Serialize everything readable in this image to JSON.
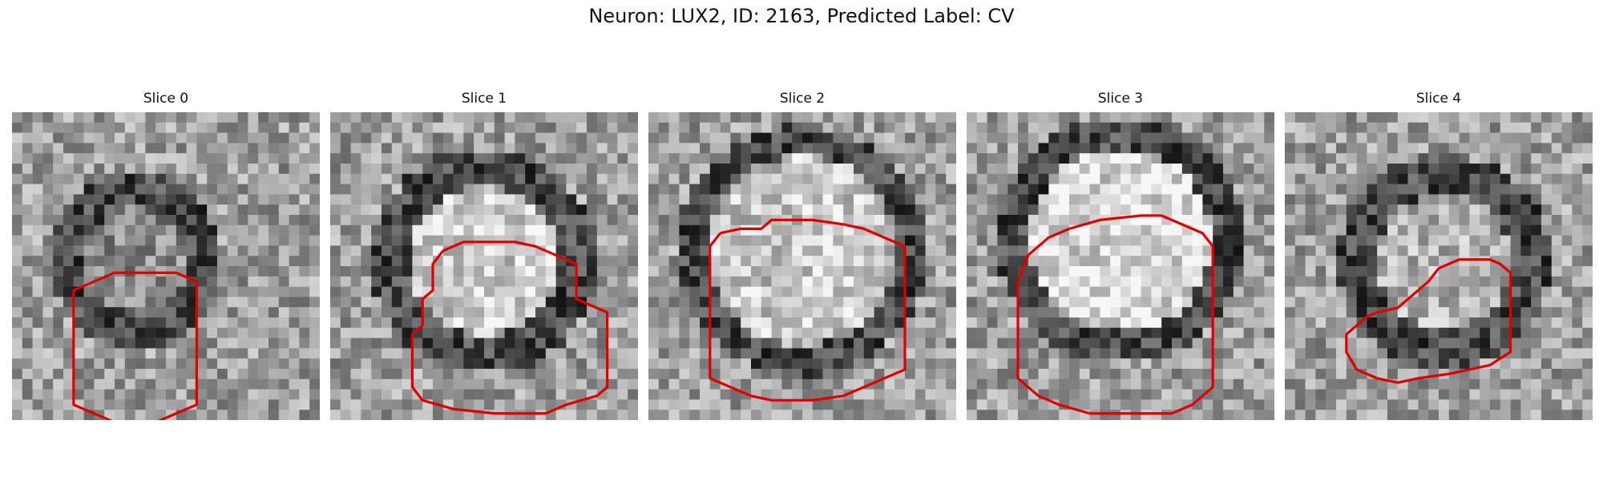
{
  "figure": {
    "title": "Neuron: LUX2, ID: 2163, Predicted Label: CV"
  },
  "slices": [
    {
      "label": "Slice 0",
      "contour": [
        [
          8,
          28
        ],
        [
          10,
          26
        ],
        [
          12,
          26
        ],
        [
          14,
          26
        ],
        [
          16,
          26
        ],
        [
          18,
          28
        ],
        [
          18,
          38
        ],
        [
          18,
          48
        ],
        [
          18,
          56
        ],
        [
          16,
          58
        ],
        [
          14,
          60
        ],
        [
          10,
          60
        ],
        [
          8,
          58
        ],
        [
          6,
          56
        ],
        [
          6,
          42
        ],
        [
          6,
          30
        ]
      ]
    },
    {
      "label": "Slice 1",
      "contour": [
        [
          11,
          21
        ],
        [
          13,
          19
        ],
        [
          18,
          19
        ],
        [
          20,
          20
        ],
        [
          22,
          22
        ],
        [
          24,
          24
        ],
        [
          24,
          32
        ],
        [
          27,
          35
        ],
        [
          27,
          52
        ],
        [
          26,
          54
        ],
        [
          23,
          56
        ],
        [
          21,
          58
        ],
        [
          16,
          58
        ],
        [
          12,
          57
        ],
        [
          9,
          55
        ],
        [
          8,
          52
        ],
        [
          8,
          40
        ],
        [
          9,
          38
        ],
        [
          9,
          32
        ],
        [
          10,
          30
        ],
        [
          10,
          24
        ]
      ]
    },
    {
      "label": "Slice 2",
      "contour": [
        [
          7,
          17
        ],
        [
          9,
          16
        ],
        [
          11,
          16
        ],
        [
          12,
          14
        ],
        [
          16,
          14
        ],
        [
          19,
          15
        ],
        [
          21,
          16
        ],
        [
          23,
          18
        ],
        [
          25,
          20
        ],
        [
          25,
          35
        ],
        [
          25,
          48
        ],
        [
          23,
          50
        ],
        [
          21,
          52
        ],
        [
          19,
          54
        ],
        [
          16,
          55
        ],
        [
          12,
          55
        ],
        [
          10,
          54
        ],
        [
          8,
          52
        ],
        [
          6,
          50
        ],
        [
          6,
          38
        ],
        [
          6,
          26
        ],
        [
          6,
          20
        ]
      ]
    },
    {
      "label": "Slice 3",
      "contour": [
        [
          10,
          16
        ],
        [
          13,
          14
        ],
        [
          17,
          13
        ],
        [
          19,
          13
        ],
        [
          21,
          15
        ],
        [
          23,
          17
        ],
        [
          24,
          20
        ],
        [
          24,
          38
        ],
        [
          24,
          52
        ],
        [
          22,
          56
        ],
        [
          20,
          58
        ],
        [
          12,
          58
        ],
        [
          9,
          56
        ],
        [
          7,
          54
        ],
        [
          5,
          50
        ],
        [
          5,
          38
        ],
        [
          5,
          28
        ],
        [
          6,
          22
        ],
        [
          8,
          18
        ]
      ]
    },
    {
      "label": "Slice 4",
      "contour": [
        [
          15,
          25
        ],
        [
          17,
          23
        ],
        [
          20,
          23
        ],
        [
          21,
          24
        ],
        [
          22,
          26
        ],
        [
          22,
          30
        ],
        [
          22,
          44
        ],
        [
          20,
          47
        ],
        [
          18,
          48
        ],
        [
          16,
          49
        ],
        [
          13,
          50
        ],
        [
          11,
          51
        ],
        [
          9,
          50
        ],
        [
          7,
          48
        ],
        [
          6,
          44
        ],
        [
          6,
          40
        ],
        [
          7,
          38
        ],
        [
          8,
          36
        ],
        [
          9,
          35
        ],
        [
          11,
          34
        ],
        [
          12,
          32
        ],
        [
          14,
          28
        ]
      ]
    }
  ]
}
